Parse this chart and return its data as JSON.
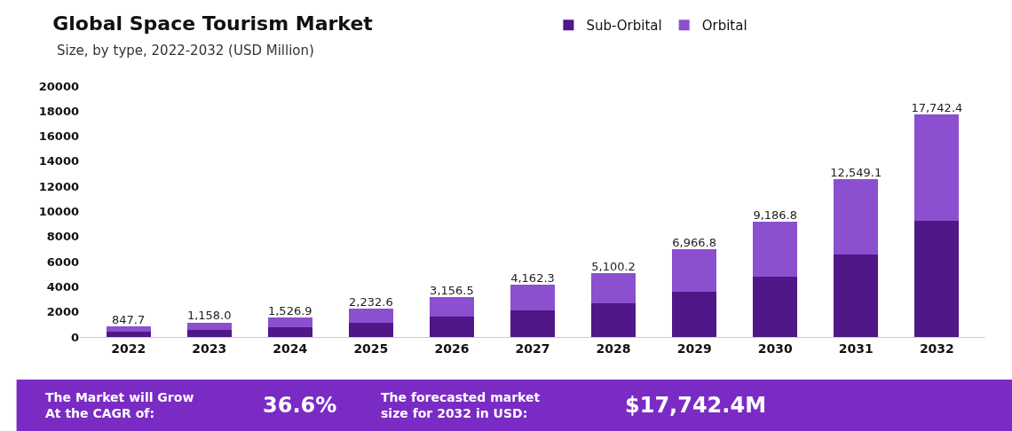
{
  "chart_data": {
    "type": "bar",
    "title": "Global Space Tourism Market",
    "subtitle": "Size, by type, 2022-2032 (USD Million)",
    "categories": [
      "2022",
      "2023",
      "2024",
      "2025",
      "2026",
      "2027",
      "2028",
      "2029",
      "2030",
      "2031",
      "2032"
    ],
    "series": [
      {
        "name": "Sub-Orbital",
        "color": "#4f1787",
        "values": [
          410,
          590,
          770,
          1130,
          1640,
          2150,
          2660,
          3590,
          4810,
          6580,
          9290
        ]
      },
      {
        "name": "Orbital",
        "color": "#8b4fcf",
        "values": [
          437.7,
          568.0,
          756.9,
          1102.6,
          1516.5,
          2012.3,
          2440.2,
          3376.8,
          4376.8,
          5969.1,
          8452.4
        ]
      }
    ],
    "stacked": true,
    "totals": [
      "847.7",
      "1,158.0",
      "1,526.9",
      "2,232.6",
      "3,156.5",
      "4,162.3",
      "5,100.2",
      "6,966.8",
      "9,186.8",
      "12,549.1",
      "17,742.4"
    ],
    "ylim": [
      0,
      20000
    ],
    "yticks": [
      0,
      2000,
      4000,
      6000,
      8000,
      10000,
      12000,
      14000,
      16000,
      18000,
      20000
    ],
    "legend": "top right",
    "annotations": [
      "The Market will Grow\nAt the CAGR of:",
      "36.6%",
      "The forecasted market\nsize for 2032 in USD:",
      "$17,742.4M"
    ]
  }
}
